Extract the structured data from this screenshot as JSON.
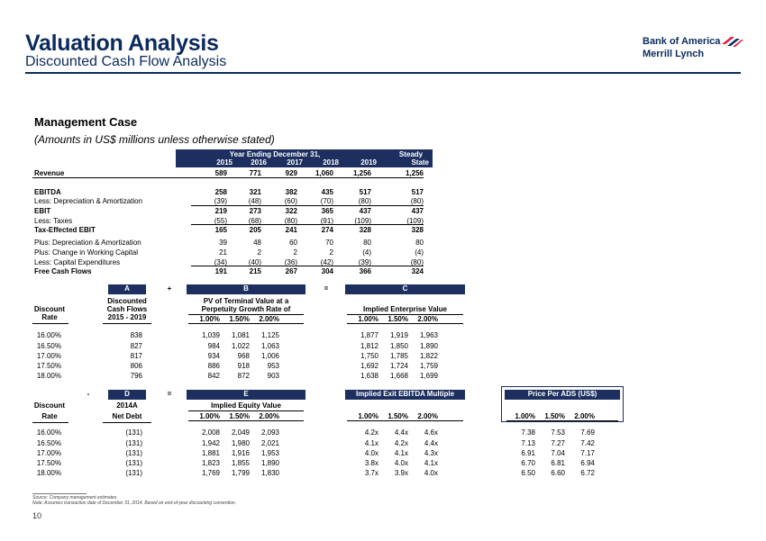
{
  "header": {
    "title": "Valuation Analysis",
    "subtitle": "Discounted Cash Flow Analysis",
    "logo_line1": "Bank of America",
    "logo_line2": "Merrill Lynch"
  },
  "case": {
    "title": "Management Case",
    "subtitle": "(Amounts in US$ millions unless otherwise stated)"
  },
  "fcf": {
    "period_header": "Year Ending December 31,",
    "steady_header": "Steady",
    "years": [
      "2015",
      "2016",
      "2017",
      "2018",
      "2019",
      "State"
    ],
    "rows": [
      {
        "label": "Revenue",
        "values": [
          "589",
          "771",
          "929",
          "1,060",
          "1,256",
          "1,256"
        ]
      },
      {
        "label": "EBITDA",
        "values": [
          "258",
          "321",
          "382",
          "435",
          "517",
          "517"
        ]
      },
      {
        "label": "Less: Depreciation & Amortization",
        "values": [
          "(39)",
          "(48)",
          "(60)",
          "(70)",
          "(80)",
          "(80)"
        ]
      },
      {
        "label": "EBIT",
        "values": [
          "219",
          "273",
          "322",
          "365",
          "437",
          "437"
        ]
      },
      {
        "label": "Less: Taxes",
        "values": [
          "(55)",
          "(68)",
          "(80)",
          "(91)",
          "(109)",
          "(109)"
        ]
      },
      {
        "label": "Tax-Effected EBIT",
        "values": [
          "165",
          "205",
          "241",
          "274",
          "328",
          "328"
        ]
      },
      {
        "label": "Plus: Depreciation & Amortization",
        "values": [
          "39",
          "48",
          "60",
          "70",
          "80",
          "80"
        ]
      },
      {
        "label": "Plus: Change in Working Capital",
        "values": [
          "21",
          "2",
          "2",
          "2",
          "(4)",
          "(4)"
        ]
      },
      {
        "label": "Less: Capital Expenditures",
        "values": [
          "(34)",
          "(40)",
          "(36)",
          "(42)",
          "(39)",
          "(80)"
        ]
      },
      {
        "label": "Free Cash Flows",
        "values": [
          "191",
          "215",
          "267",
          "304",
          "366",
          "324"
        ]
      }
    ]
  },
  "dcf": {
    "box_a": "A",
    "plus": "+",
    "box_b": "B",
    "equals": "=",
    "box_c": "C",
    "discount": "Discount",
    "rate": "Rate",
    "discounted": "Discounted",
    "cash_flows": "Cash Flows",
    "period": "2015 - 2019",
    "pv_line1": "PV of Terminal Value at a",
    "pv_line2": "Perpetuity Growth Rate of",
    "iev": "Implied Enterprise Value",
    "growth": [
      "1.00%",
      "1.50%",
      "2.00%"
    ],
    "rates": [
      "16.00%",
      "16.50%",
      "17.00%",
      "17.50%",
      "18.00%"
    ],
    "dcf_values": [
      "838",
      "827",
      "817",
      "806",
      "796"
    ],
    "pv_tv": [
      [
        "1,039",
        "1,081",
        "1,125"
      ],
      [
        "984",
        "1,022",
        "1,063"
      ],
      [
        "934",
        "968",
        "1,006"
      ],
      [
        "886",
        "918",
        "953"
      ],
      [
        "842",
        "872",
        "903"
      ]
    ],
    "ev": [
      [
        "1,877",
        "1,919",
        "1,963"
      ],
      [
        "1,812",
        "1,850",
        "1,890"
      ],
      [
        "1,750",
        "1,785",
        "1,822"
      ],
      [
        "1,692",
        "1,724",
        "1,759"
      ],
      [
        "1,638",
        "1,668",
        "1,699"
      ]
    ]
  },
  "equity": {
    "minus": "-",
    "box_d": "D",
    "equals": "=",
    "box_e": "E",
    "exit_multiple": "Implied Exit EBITDA Multiple",
    "price_per_ads": "Price Per ADS (US$)",
    "discount": "Discount",
    "rate": "Rate",
    "year_2014a": "2014A",
    "net_debt": "Net Debt",
    "iev_label": "Implied Equity Value",
    "growth": [
      "1.00%",
      "1.50%",
      "2.00%"
    ],
    "rates": [
      "16.00%",
      "16.50%",
      "17.00%",
      "17.50%",
      "18.00%"
    ],
    "net_debt_values": [
      "(131)",
      "(131)",
      "(131)",
      "(131)",
      "(131)"
    ],
    "equity_values": [
      [
        "2,008",
        "2,049",
        "2,093"
      ],
      [
        "1,942",
        "1,980",
        "2,021"
      ],
      [
        "1,881",
        "1,916",
        "1,953"
      ],
      [
        "1,823",
        "1,855",
        "1,890"
      ],
      [
        "1,769",
        "1,799",
        "1,830"
      ]
    ],
    "multiples": [
      [
        "4.2x",
        "4.4x",
        "4.6x"
      ],
      [
        "4.1x",
        "4.2x",
        "4.4x"
      ],
      [
        "4.0x",
        "4.1x",
        "4.3x"
      ],
      [
        "3.8x",
        "4.0x",
        "4.1x"
      ],
      [
        "3.7x",
        "3.9x",
        "4.0x"
      ]
    ],
    "prices": [
      [
        "7.38",
        "7.53",
        "7.69"
      ],
      [
        "7.13",
        "7.27",
        "7.42"
      ],
      [
        "6.91",
        "7.04",
        "7.17"
      ],
      [
        "6.70",
        "6.81",
        "6.94"
      ],
      [
        "6.50",
        "6.60",
        "6.72"
      ]
    ]
  },
  "footer": {
    "source": "Source: Company management estimates",
    "note": "Note: Assumes transaction date of December 31, 2014. Based on end-of-year discounting convention.",
    "page": "10"
  },
  "colors": {
    "navy": "#1c2f5f",
    "brand": "#0b2a5e",
    "logo_red": "#e31837"
  }
}
